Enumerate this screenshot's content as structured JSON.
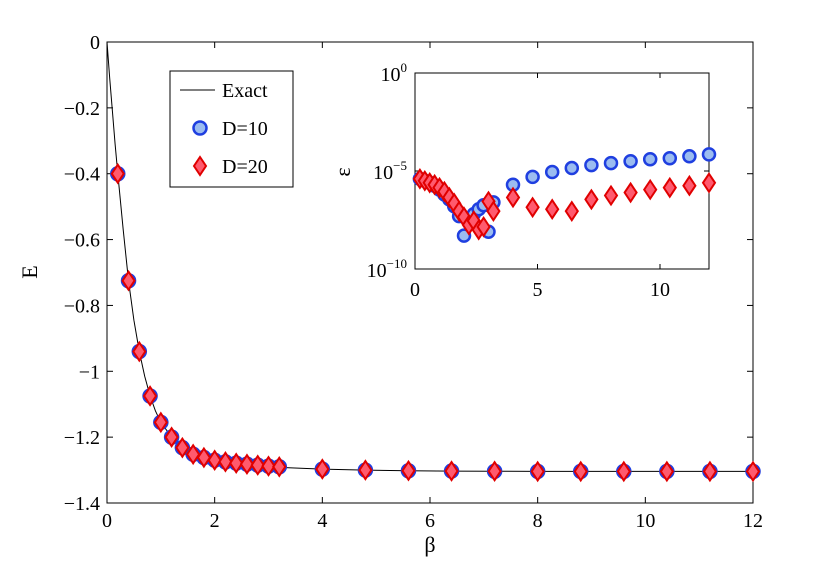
{
  "chart_data": [
    {
      "type": "line",
      "role": "main",
      "xlabel": "β",
      "ylabel": "E",
      "xlim": [
        0,
        12
      ],
      "ylim": [
        -1.4,
        0
      ],
      "xticks": [
        0,
        2,
        4,
        6,
        8,
        10,
        12
      ],
      "yticks": [
        0,
        -0.2,
        -0.4,
        -0.6,
        -0.8,
        -1,
        -1.2,
        -1.4
      ],
      "xtick_labels": [
        "0",
        "2",
        "4",
        "6",
        "8",
        "10",
        "12"
      ],
      "ytick_labels": [
        "0",
        "−0.2",
        "−0.4",
        "−0.6",
        "−0.8",
        "−1",
        "−1.2",
        "−1.4"
      ],
      "legend": {
        "location": "top-left-inner",
        "entries": [
          "Exact",
          "D=10",
          "D=20"
        ]
      },
      "exact_curve": {
        "name": "Exact",
        "color": "#000000",
        "x": [
          0,
          0.05,
          0.1,
          0.15,
          0.2,
          0.3,
          0.4,
          0.5,
          0.6,
          0.7,
          0.8,
          0.9,
          1.0,
          1.2,
          1.4,
          1.6,
          1.8,
          2.0,
          2.4,
          2.8,
          3.2,
          4.0,
          4.8,
          5.6,
          6.4,
          7.2,
          8.0,
          9.0,
          10.0,
          11.0,
          12.0
        ],
        "y": [
          0,
          -0.11,
          -0.21,
          -0.31,
          -0.4,
          -0.57,
          -0.725,
          -0.845,
          -0.94,
          -1.015,
          -1.075,
          -1.12,
          -1.155,
          -1.2,
          -1.232,
          -1.252,
          -1.262,
          -1.27,
          -1.282,
          -1.288,
          -1.292,
          -1.297,
          -1.3,
          -1.302,
          -1.303,
          -1.3035,
          -1.304,
          -1.304,
          -1.304,
          -1.304,
          -1.304
        ]
      },
      "series": [
        {
          "name": "D=10",
          "marker": "circle",
          "fill": "#9bbcf0",
          "edge": "#1f3fe0",
          "x": [
            0.2,
            0.4,
            0.6,
            0.8,
            1.0,
            1.2,
            1.4,
            1.6,
            1.8,
            2.0,
            2.2,
            2.4,
            2.6,
            2.8,
            3.0,
            3.2,
            4.0,
            4.8,
            5.6,
            6.4,
            7.2,
            8.0,
            8.8,
            9.6,
            10.4,
            11.2,
            12.0
          ],
          "y": [
            -0.4,
            -0.725,
            -0.94,
            -1.075,
            -1.155,
            -1.2,
            -1.232,
            -1.252,
            -1.262,
            -1.27,
            -1.275,
            -1.279,
            -1.282,
            -1.285,
            -1.288,
            -1.29,
            -1.297,
            -1.3,
            -1.302,
            -1.303,
            -1.3035,
            -1.304,
            -1.304,
            -1.304,
            -1.304,
            -1.304,
            -1.304
          ]
        },
        {
          "name": "D=20",
          "marker": "diamond",
          "fill": "#ff5a6e",
          "edge": "#e00000",
          "x": [
            0.2,
            0.4,
            0.6,
            0.8,
            1.0,
            1.2,
            1.4,
            1.6,
            1.8,
            2.0,
            2.2,
            2.4,
            2.6,
            2.8,
            3.0,
            3.2,
            4.0,
            4.8,
            5.6,
            6.4,
            7.2,
            8.0,
            8.8,
            9.6,
            10.4,
            11.2,
            12.0
          ],
          "y": [
            -0.4,
            -0.725,
            -0.94,
            -1.075,
            -1.155,
            -1.2,
            -1.232,
            -1.252,
            -1.262,
            -1.27,
            -1.275,
            -1.279,
            -1.282,
            -1.285,
            -1.288,
            -1.29,
            -1.297,
            -1.3,
            -1.302,
            -1.303,
            -1.3035,
            -1.304,
            -1.304,
            -1.304,
            -1.304,
            -1.304,
            -1.304
          ]
        }
      ]
    },
    {
      "type": "scatter",
      "role": "inset",
      "xlabel": "",
      "ylabel": "ε",
      "yscale": "log",
      "xlim": [
        0,
        12
      ],
      "ylim_exponents": [
        -10,
        0
      ],
      "xticks": [
        0,
        5,
        10
      ],
      "xtick_labels": [
        "0",
        "5",
        "10"
      ],
      "ytick_exponents": [
        0,
        -5,
        -10
      ],
      "ytick_base": "10",
      "ytick_exp_labels": [
        "0",
        "−5",
        "−10"
      ],
      "series": [
        {
          "name": "D=10",
          "marker": "circle",
          "fill": "#9bbcf0",
          "edge": "#1f3fe0",
          "x": [
            0.2,
            0.4,
            0.6,
            0.8,
            1.0,
            1.2,
            1.4,
            1.6,
            1.8,
            2.0,
            2.2,
            2.4,
            2.6,
            2.8,
            3.0,
            3.2,
            4.0,
            4.8,
            5.6,
            6.4,
            7.2,
            8.0,
            8.8,
            9.6,
            10.4,
            11.2,
            12.0
          ],
          "log10_y": [
            -5.4,
            -5.5,
            -5.6,
            -5.75,
            -5.95,
            -6.2,
            -6.45,
            -6.8,
            -7.3,
            -8.3,
            -7.6,
            -7.2,
            -6.95,
            -6.75,
            -8.1,
            -6.6,
            -5.7,
            -5.3,
            -5.05,
            -4.85,
            -4.7,
            -4.6,
            -4.5,
            -4.4,
            -4.35,
            -4.25,
            -4.15
          ]
        },
        {
          "name": "D=20",
          "marker": "diamond",
          "fill": "#ff5a6e",
          "edge": "#e00000",
          "x": [
            0.2,
            0.4,
            0.6,
            0.8,
            1.0,
            1.2,
            1.4,
            1.6,
            1.8,
            2.0,
            2.2,
            2.4,
            2.6,
            2.8,
            3.0,
            3.2,
            4.0,
            4.8,
            5.6,
            6.4,
            7.2,
            8.0,
            8.8,
            9.6,
            10.4,
            11.2,
            12.0
          ],
          "log10_y": [
            -5.4,
            -5.5,
            -5.6,
            -5.7,
            -5.85,
            -6.05,
            -6.35,
            -6.65,
            -7.05,
            -7.35,
            -7.75,
            -7.55,
            -8.0,
            -7.85,
            -6.55,
            -7.05,
            -6.35,
            -6.85,
            -6.95,
            -7.05,
            -6.45,
            -6.25,
            -6.1,
            -5.95,
            -5.85,
            -5.75,
            -5.6
          ]
        }
      ]
    }
  ]
}
